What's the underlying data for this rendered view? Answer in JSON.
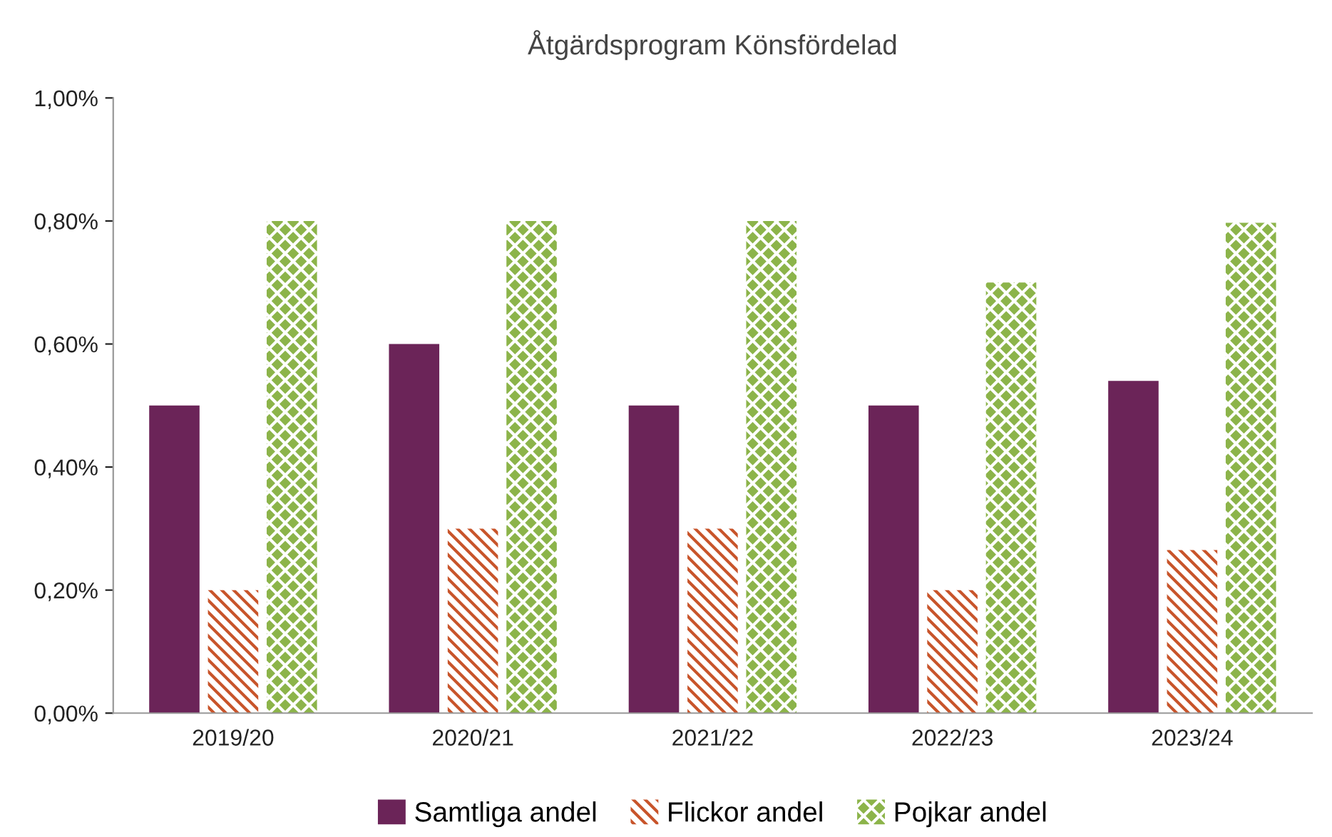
{
  "chart_data": {
    "type": "bar",
    "title": "Åtgärdsprogram Könsfördelad",
    "categories": [
      "2019/20",
      "2020/21",
      "2021/22",
      "2022/23",
      "2023/24"
    ],
    "series": [
      {
        "name": "Samtliga andel",
        "color": "#6b2458",
        "values": [
          0.5,
          0.6,
          0.5,
          0.5,
          0.54
        ]
      },
      {
        "name": "Flickor andel",
        "color": "#c8542a",
        "values": [
          0.2,
          0.3,
          0.3,
          0.2,
          0.265
        ]
      },
      {
        "name": "Pojkar andel",
        "color": "#8cb44a",
        "values": [
          0.8,
          0.8,
          0.8,
          0.7,
          0.797
        ]
      }
    ],
    "ylim": [
      0,
      1
    ],
    "yticks": [
      {
        "value": 0,
        "label": "0,00%"
      },
      {
        "value": 0.2,
        "label": "0,20%"
      },
      {
        "value": 0.4,
        "label": "0,40%"
      },
      {
        "value": 0.6,
        "label": "0,60%"
      },
      {
        "value": 0.8,
        "label": "0,80%"
      },
      {
        "value": 1,
        "label": "1,00%"
      }
    ],
    "grid": false,
    "legend": "bottom"
  }
}
